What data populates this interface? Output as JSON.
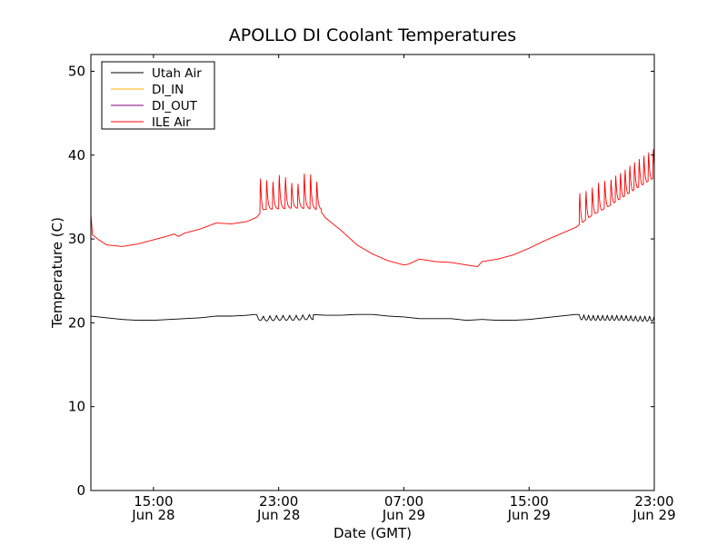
{
  "chart_data": {
    "type": "line",
    "title": "APOLLO DI Coolant Temperatures",
    "xlabel": "Date (GMT)",
    "ylabel": "Temperature (C)",
    "xlim": [
      11.0,
      47.0
    ],
    "ylim": [
      0,
      52
    ],
    "y_ticks": [
      0,
      10,
      20,
      30,
      40,
      50
    ],
    "x_ticks": [
      {
        "hour": 15,
        "time": "15:00",
        "date": "Jun 28"
      },
      {
        "hour": 23,
        "time": "23:00",
        "date": "Jun 28"
      },
      {
        "hour": 31,
        "time": "07:00",
        "date": "Jun 29"
      },
      {
        "hour": 39,
        "time": "15:00",
        "date": "Jun 29"
      },
      {
        "hour": 47,
        "time": "23:00",
        "date": "Jun 29"
      }
    ],
    "x_unit": "hours since Jun 28 00:00 GMT",
    "legend_position": "top-left",
    "series": [
      {
        "name": "Utah Air",
        "color": "#000000",
        "points": [
          [
            11.0,
            20.8
          ],
          [
            12.0,
            20.6
          ],
          [
            13.0,
            20.4
          ],
          [
            14.0,
            20.3
          ],
          [
            15.0,
            20.3
          ],
          [
            16.0,
            20.4
          ],
          [
            17.0,
            20.5
          ],
          [
            18.0,
            20.6
          ],
          [
            19.0,
            20.8
          ],
          [
            20.0,
            20.8
          ],
          [
            21.0,
            20.9
          ],
          [
            21.5,
            21.0
          ],
          [
            22.0,
            20.8
          ],
          [
            23.0,
            20.9
          ],
          [
            24.0,
            20.9
          ],
          [
            25.0,
            21.0
          ],
          [
            26.0,
            20.9
          ],
          [
            27.0,
            20.9
          ],
          [
            28.0,
            21.0
          ],
          [
            29.0,
            21.0
          ],
          [
            30.0,
            20.8
          ],
          [
            31.0,
            20.7
          ],
          [
            32.0,
            20.5
          ],
          [
            33.0,
            20.5
          ],
          [
            34.0,
            20.5
          ],
          [
            35.0,
            20.3
          ],
          [
            36.0,
            20.4
          ],
          [
            37.0,
            20.3
          ],
          [
            38.0,
            20.3
          ],
          [
            39.0,
            20.4
          ],
          [
            40.0,
            20.6
          ],
          [
            41.0,
            20.8
          ],
          [
            42.0,
            21.0
          ],
          [
            43.0,
            20.9
          ],
          [
            44.0,
            20.9
          ],
          [
            45.0,
            20.9
          ],
          [
            46.0,
            20.8
          ],
          [
            47.0,
            20.8
          ]
        ],
        "oscillation_windows": [
          {
            "start": 21.6,
            "end": 25.2,
            "period": 0.42,
            "dip": 0.6
          },
          {
            "start": 42.2,
            "end": 47.0,
            "period": 0.3,
            "dip": 0.6
          }
        ]
      },
      {
        "name": "DI_IN",
        "color": "#ffb400",
        "points": []
      },
      {
        "name": "DI_OUT",
        "color": "#800080",
        "points": []
      },
      {
        "name": "ILE Air",
        "color": "#ff0000",
        "points": [
          [
            11.0,
            33.0
          ],
          [
            11.1,
            30.5
          ],
          [
            11.5,
            29.9
          ],
          [
            12.0,
            29.3
          ],
          [
            13.0,
            29.1
          ],
          [
            14.0,
            29.4
          ],
          [
            15.0,
            29.9
          ],
          [
            16.0,
            30.4
          ],
          [
            16.3,
            30.6
          ],
          [
            16.6,
            30.3
          ],
          [
            17.0,
            30.7
          ],
          [
            18.0,
            31.2
          ],
          [
            19.0,
            31.9
          ],
          [
            20.0,
            31.8
          ],
          [
            21.0,
            32.1
          ],
          [
            21.6,
            32.6
          ],
          [
            22.0,
            33.5
          ],
          [
            23.0,
            33.6
          ],
          [
            24.0,
            33.7
          ],
          [
            25.0,
            33.6
          ],
          [
            25.6,
            33.5
          ],
          [
            26.0,
            32.5
          ],
          [
            27.0,
            31.0
          ],
          [
            28.0,
            29.3
          ],
          [
            29.0,
            28.2
          ],
          [
            30.0,
            27.4
          ],
          [
            31.0,
            26.9
          ],
          [
            31.3,
            27.0
          ],
          [
            32.0,
            27.6
          ],
          [
            33.0,
            27.3
          ],
          [
            34.0,
            27.2
          ],
          [
            35.0,
            26.9
          ],
          [
            35.7,
            26.7
          ],
          [
            36.0,
            27.3
          ],
          [
            37.0,
            27.6
          ],
          [
            38.0,
            28.1
          ],
          [
            39.0,
            28.9
          ],
          [
            40.0,
            29.8
          ],
          [
            41.0,
            30.6
          ],
          [
            42.0,
            31.4
          ],
          [
            43.0,
            32.8
          ],
          [
            44.0,
            33.8
          ],
          [
            45.0,
            35.0
          ],
          [
            46.0,
            36.2
          ],
          [
            47.0,
            37.3
          ]
        ],
        "spikes": [
          {
            "hour": 21.8,
            "peak": 37.8
          },
          {
            "hour": 22.2,
            "peak": 37.5
          },
          {
            "hour": 22.6,
            "peak": 37.3
          },
          {
            "hour": 23.0,
            "peak": 38.2
          },
          {
            "hour": 23.4,
            "peak": 37.9
          },
          {
            "hour": 23.8,
            "peak": 37.1
          },
          {
            "hour": 24.2,
            "peak": 37.0
          },
          {
            "hour": 24.6,
            "peak": 38.4
          },
          {
            "hour": 25.0,
            "peak": 38.3
          },
          {
            "hour": 25.4,
            "peak": 37.3
          },
          {
            "hour": 42.2,
            "peak": 36.0
          },
          {
            "hour": 42.6,
            "peak": 36.2
          },
          {
            "hour": 43.0,
            "peak": 36.6
          },
          {
            "hour": 43.4,
            "peak": 37.2
          },
          {
            "hour": 43.8,
            "peak": 37.4
          },
          {
            "hour": 44.2,
            "peak": 37.5
          },
          {
            "hour": 44.5,
            "peak": 38.0
          },
          {
            "hour": 44.8,
            "peak": 38.3
          },
          {
            "hour": 45.1,
            "peak": 38.7
          },
          {
            "hour": 45.4,
            "peak": 39.2
          },
          {
            "hour": 45.7,
            "peak": 39.6
          },
          {
            "hour": 46.0,
            "peak": 40.0
          },
          {
            "hour": 46.3,
            "peak": 40.4
          },
          {
            "hour": 46.6,
            "peak": 40.8
          },
          {
            "hour": 46.9,
            "peak": 41.2
          }
        ]
      }
    ]
  }
}
